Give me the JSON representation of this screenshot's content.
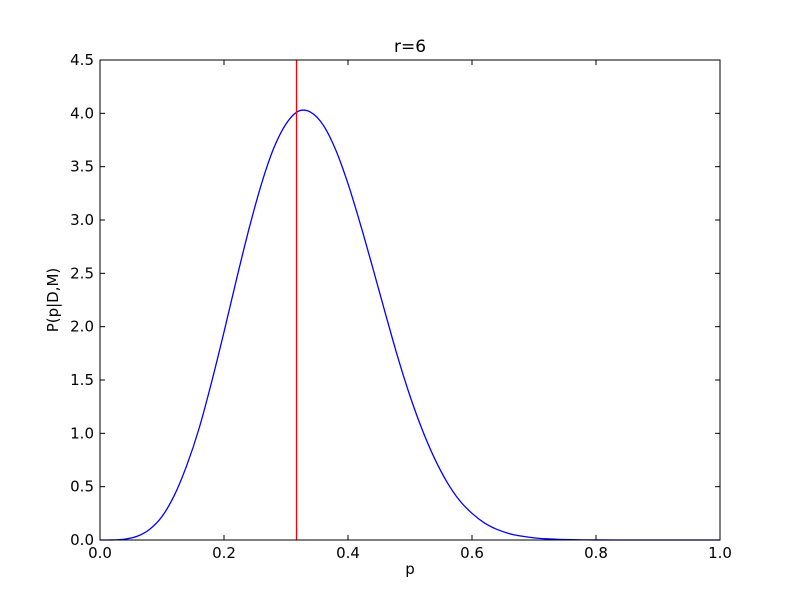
{
  "chart_data": {
    "type": "line",
    "title": "r=6",
    "xlabel": "p",
    "ylabel": "P(p|D,M)",
    "xlim": [
      0.0,
      1.0
    ],
    "ylim": [
      0.0,
      4.5
    ],
    "xticks": [
      0.0,
      0.2,
      0.4,
      0.6,
      0.8,
      1.0
    ],
    "xtick_labels": [
      "0.0",
      "0.2",
      "0.4",
      "0.6",
      "0.8",
      "1.0"
    ],
    "yticks": [
      0.0,
      0.5,
      1.0,
      1.5,
      2.0,
      2.5,
      3.0,
      3.5,
      4.0,
      4.5
    ],
    "ytick_labels": [
      "0.0",
      "0.5",
      "1.0",
      "1.5",
      "2.0",
      "2.5",
      "3.0",
      "3.5",
      "4.0",
      "4.5"
    ],
    "grid": false,
    "series": [
      {
        "color": "#0000ff",
        "x": [
          0.0,
          0.02,
          0.04,
          0.06,
          0.08,
          0.1,
          0.12,
          0.14,
          0.16,
          0.18,
          0.2,
          0.22,
          0.24,
          0.26,
          0.28,
          0.3,
          0.32,
          0.34,
          0.36,
          0.38,
          0.4,
          0.42,
          0.44,
          0.46,
          0.48,
          0.5,
          0.52,
          0.54,
          0.56,
          0.58,
          0.6,
          0.62,
          0.64,
          0.66,
          0.68,
          0.7,
          0.72,
          0.74,
          0.76,
          0.78,
          0.8,
          0.85,
          0.9,
          0.95,
          1.0
        ],
        "y": [
          0.0,
          0.0006,
          0.008,
          0.035,
          0.1,
          0.22,
          0.42,
          0.7,
          1.05,
          1.48,
          1.95,
          2.44,
          2.91,
          3.33,
          3.67,
          3.9,
          4.02,
          4.01,
          3.89,
          3.66,
          3.34,
          2.96,
          2.55,
          2.13,
          1.72,
          1.35,
          1.03,
          0.76,
          0.54,
          0.37,
          0.25,
          0.16,
          0.1,
          0.06,
          0.036,
          0.02,
          0.011,
          0.006,
          0.003,
          0.0015,
          0.0007,
          0.0001,
          1e-05,
          0.0,
          0.0
        ]
      }
    ],
    "vlines": [
      {
        "x": 0.317,
        "color": "#ff0000"
      }
    ]
  }
}
